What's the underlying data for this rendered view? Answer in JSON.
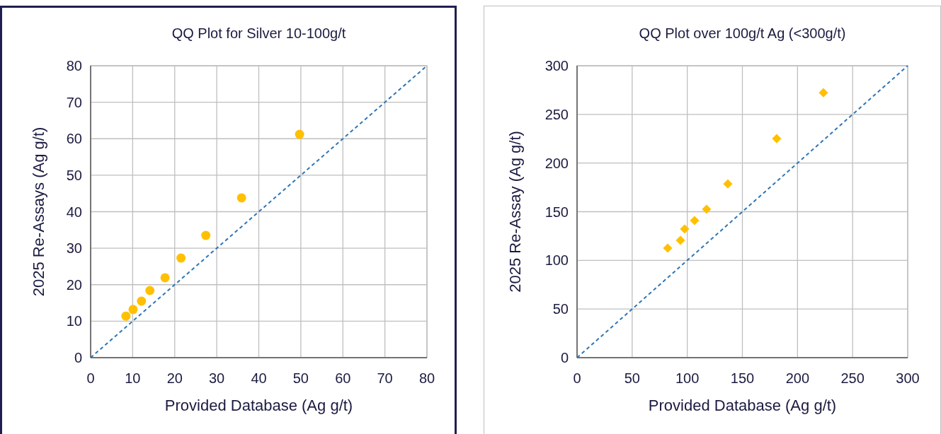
{
  "chart_data": [
    {
      "type": "scatter",
      "title": "QQ Plot for Silver 10-100g/t",
      "xlabel": "Provided Database (Ag g/t)",
      "ylabel": "2025 Re-Assays (Ag g/t)",
      "xlim": [
        0,
        80
      ],
      "ylim": [
        0,
        80
      ],
      "xticks": [
        0,
        10,
        20,
        30,
        40,
        50,
        60,
        70,
        80
      ],
      "yticks": [
        0,
        10,
        20,
        30,
        40,
        50,
        60,
        70,
        80
      ],
      "grid": true,
      "series": [
        {
          "color": "#ffc000",
          "marker": "circle",
          "x": [
            8.4,
            10.1,
            12.1,
            14.1,
            17.7,
            21.5,
            27.4,
            35.9,
            49.7
          ],
          "values": [
            11.4,
            13.2,
            15.5,
            18.4,
            21.9,
            27.3,
            33.5,
            43.8,
            61.2
          ]
        },
        {
          "type": "line",
          "color": "#2e75b6",
          "line_style": "dashed",
          "marker": "none",
          "x": [
            0,
            80
          ],
          "values": [
            0,
            80
          ]
        }
      ]
    },
    {
      "type": "scatter",
      "title": "QQ Plot over 100g/t Ag (<300g/t)",
      "xlabel": "Provided Database (Ag g/t)",
      "ylabel": "2025 Re-Assay (Ag g/t)",
      "xlim": [
        0,
        300
      ],
      "ylim": [
        0,
        300
      ],
      "xticks": [
        0,
        50,
        100,
        150,
        200,
        250,
        300
      ],
      "yticks": [
        0,
        50,
        100,
        150,
        200,
        250,
        300
      ],
      "grid": true,
      "series": [
        {
          "color": "#ffc000",
          "marker": "diamond",
          "x": [
            82.2,
            93.8,
            97.6,
            106.6,
            117.5,
            136.8,
            181.1,
            223.5
          ],
          "values": [
            112.6,
            120.6,
            132.2,
            140.9,
            152.5,
            178.6,
            225.1,
            272.3
          ]
        },
        {
          "type": "line",
          "color": "#2e75b6",
          "line_style": "dashed",
          "marker": "none",
          "x": [
            0,
            300
          ],
          "values": [
            0,
            300
          ]
        }
      ]
    }
  ]
}
